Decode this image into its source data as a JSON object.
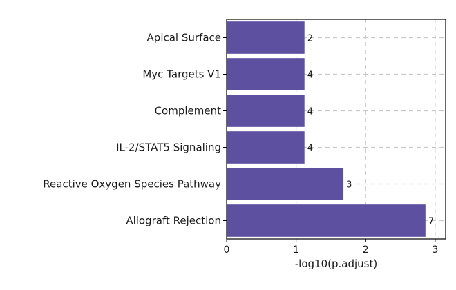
{
  "chart_data": {
    "type": "bar",
    "orientation": "horizontal",
    "title": "",
    "xlabel": "-log10(p.adjust)",
    "ylabel": "",
    "xlim": [
      0,
      3.15
    ],
    "xticks": [
      0,
      1,
      2,
      3
    ],
    "grid": true,
    "grid_style": "dashed",
    "bar_color": "#5e50a1",
    "categories": [
      "Apical Surface",
      "Myc Targets V1",
      "Complement",
      "IL-2/STAT5 Signaling",
      "Reactive Oxygen Species Pathway",
      "Allograft Rejection"
    ],
    "values": [
      1.12,
      1.12,
      1.12,
      1.12,
      1.68,
      2.86
    ],
    "data_labels": [
      "2",
      "4",
      "4",
      "4",
      "3",
      "7"
    ]
  }
}
